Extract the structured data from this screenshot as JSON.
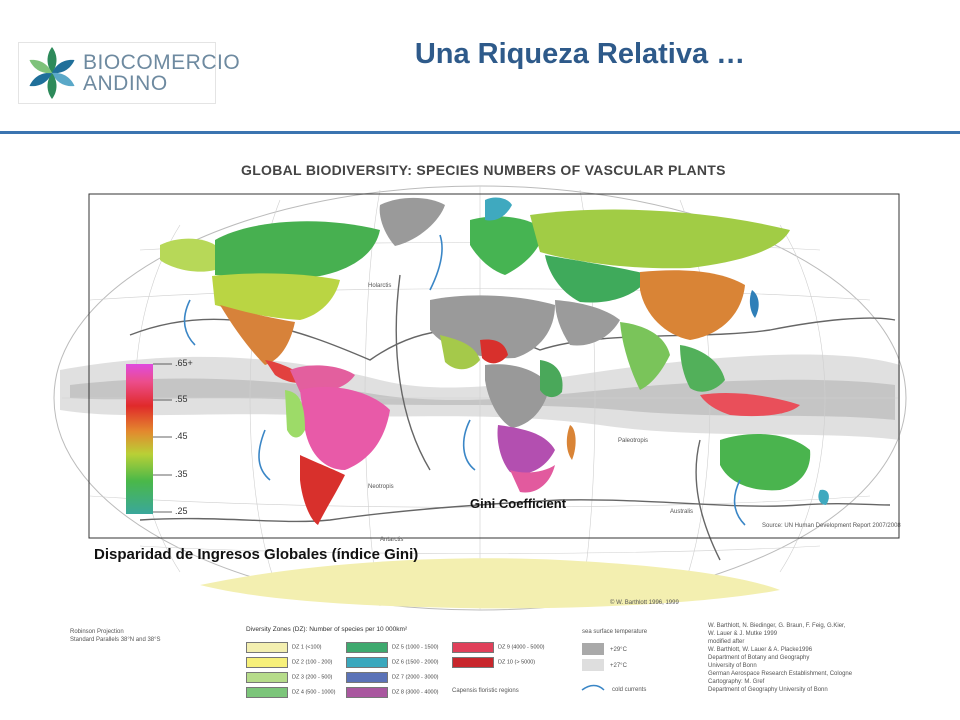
{
  "logo": {
    "line1": "BIOCOMERCIO",
    "line2": "ANDINO"
  },
  "slide_title": "Una Riqueza Relativa …",
  "map": {
    "title": "GLOBAL BIODIVERSITY:  SPECIES NUMBERS OF VASCULAR PLANTS",
    "regions": {
      "holarctis": "Holarctis",
      "neotropis": "Neotropis",
      "paleotropis": "Paleotropis",
      "australis": "Australis",
      "antarctis": "Antarctis",
      "capensis": "Capensis"
    },
    "source": "Source: UN Human Development Report 2007/2008",
    "copyright": "© W. Barthlott 1996, 1999"
  },
  "gini": {
    "label": "Gini Coefficient",
    "ticks": [
      ".65+",
      ".55",
      ".45",
      ".35",
      ".25"
    ],
    "caption": "Disparidad de Ingresos Globales (índice Gini)"
  },
  "projection": {
    "line1": "Robinson Projection",
    "line2": "Standard Parallels 38°N and 38°S"
  },
  "legend": {
    "title": "Diversity Zones (DZ):  Number of species per 10 000km²",
    "zones": [
      {
        "label": "DZ  1      (<100)",
        "color": "#f3efb0"
      },
      {
        "label": "DZ  2    (100 -  200)",
        "color": "#f7f07a"
      },
      {
        "label": "DZ  3    (200 -  500)",
        "color": "#b6dc8a"
      },
      {
        "label": "DZ  4    (500 - 1000)",
        "color": "#7cc57a"
      },
      {
        "label": "DZ  5  (1000 - 1500)",
        "color": "#3ea96e"
      },
      {
        "label": "DZ  6  (1500 - 2000)",
        "color": "#3aa8bd"
      },
      {
        "label": "DZ  7  (2000 - 3000)",
        "color": "#5b73b8"
      },
      {
        "label": "DZ  8  (3000 - 4000)",
        "color": "#a9579f"
      },
      {
        "label": "DZ  9  (4000 - 5000)",
        "color": "#e0405a"
      },
      {
        "label": "DZ  10  (> 5000)",
        "color": "#c8262c"
      }
    ],
    "capensis_text": "Capensis     floristic regions",
    "sst_title": "sea surface temperature",
    "sst_warm": "+29°C",
    "sst_cool": "+27°C",
    "cold_currents": "cold currents"
  },
  "credits": [
    "W. Barthlott, N. Biedinger, G. Braun, F. Feig, G.Kier,",
    "W. Lauer & J. Mutke 1999",
    "modified after",
    "W. Barthlott, W. Lauer & A. Placke1996",
    "Department of Botany and Geography",
    "University of Bonn",
    "German Aerospace Research Establishment, Cologne",
    "Cartography: M. Gref",
    "Department of Geography University of Bonn"
  ],
  "colors": {
    "title_blue": "#2e5a8a",
    "rule_blue": "#3b74b0",
    "ocean": "#ffffff"
  }
}
